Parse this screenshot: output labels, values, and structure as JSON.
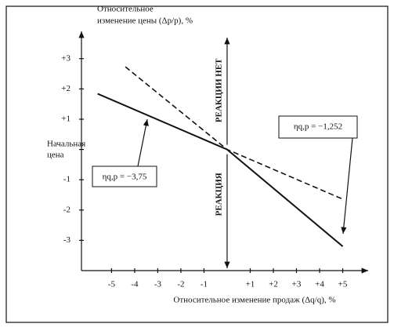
{
  "chart_data": {
    "type": "line",
    "y_label_lines": [
      "Относительное",
      "изменение цены (Δp/p), %"
    ],
    "x_label": "Относительное изменение продаж (Δq/q), %",
    "xlim": [
      -6.3,
      6.1
    ],
    "ylim": [
      -4,
      3.9
    ],
    "xticks": [
      -5,
      -4,
      -3,
      -2,
      -1,
      {
        "value": 1,
        "label": "+1"
      },
      {
        "value": 2,
        "label": "+2"
      },
      {
        "value": 3,
        "label": "+3"
      },
      {
        "value": 4,
        "label": "+4"
      },
      {
        "value": 5,
        "label": "+5"
      }
    ],
    "yticks": [
      {
        "value": 3,
        "label": "+3"
      },
      {
        "value": 2,
        "label": "+2"
      },
      {
        "value": 1,
        "label": "+1"
      },
      {
        "value": 0,
        "label": "Начальная цена"
      },
      -1,
      -2,
      -3
    ],
    "series": [
      {
        "color": "#111",
        "dash": false,
        "x": [
          -5.6,
          0,
          5
        ],
        "values": [
          1.84,
          0,
          -3.2
        ]
      },
      {
        "color": "#111",
        "dash": true,
        "x": [
          -4.4,
          0,
          5
        ],
        "values": [
          2.73,
          0,
          -1.64
        ]
      }
    ],
    "annotations": {
      "no_reaction": "РЕАКЦИИ НЕТ",
      "reaction": "РЕАКЦИЯ",
      "elasticity_left": "ηq,p = −3,75",
      "elasticity_right": "ηq,p = −1,252"
    }
  }
}
